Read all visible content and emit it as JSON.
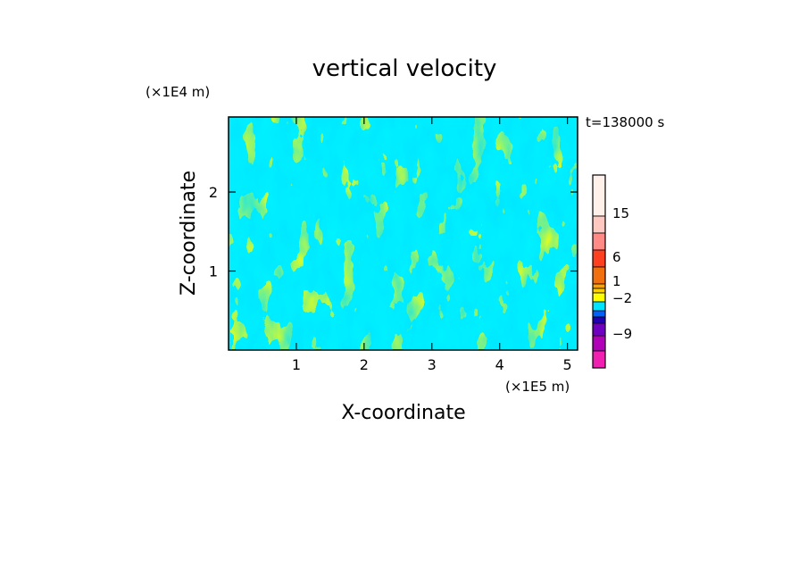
{
  "chart_data": {
    "type": "heatmap",
    "title": "vertical velocity",
    "xlabel": "X-coordinate",
    "ylabel": "Z-coordinate",
    "x_unit": "(×1E5 m)",
    "y_unit": "(×1E4 m)",
    "time_label": "t=138000 s",
    "xlim": [
      0,
      5.15
    ],
    "ylim": [
      0,
      2.95
    ],
    "x_ticks": [
      1,
      2,
      3,
      4,
      5
    ],
    "y_ticks": [
      1,
      2
    ],
    "x_tick_labels": [
      "1",
      "2",
      "3",
      "4",
      "5"
    ],
    "y_tick_labels": [
      "1",
      "2"
    ],
    "dominant_fill": {
      "positive": "#FFFF00",
      "negative": "#00E5FF"
    },
    "colorbar": {
      "levels_top_to_bottom": [
        {
          "color": "#FFF0EA"
        },
        {
          "color": "#FFC8C0"
        },
        {
          "color": "#FF8A86"
        },
        {
          "color": "#FF4020"
        },
        {
          "color": "#F07010"
        },
        {
          "color": "#FFA000"
        },
        {
          "color": "#FFD000"
        },
        {
          "color": "#FFFF00"
        },
        {
          "color": "#00E5FF"
        },
        {
          "color": "#0060FF"
        },
        {
          "color": "#2000B0"
        },
        {
          "color": "#7000C0"
        },
        {
          "color": "#B000B8"
        },
        {
          "color": "#F020B0"
        }
      ],
      "labels": [
        "15",
        "6",
        "1",
        "−2",
        "−9"
      ]
    }
  }
}
